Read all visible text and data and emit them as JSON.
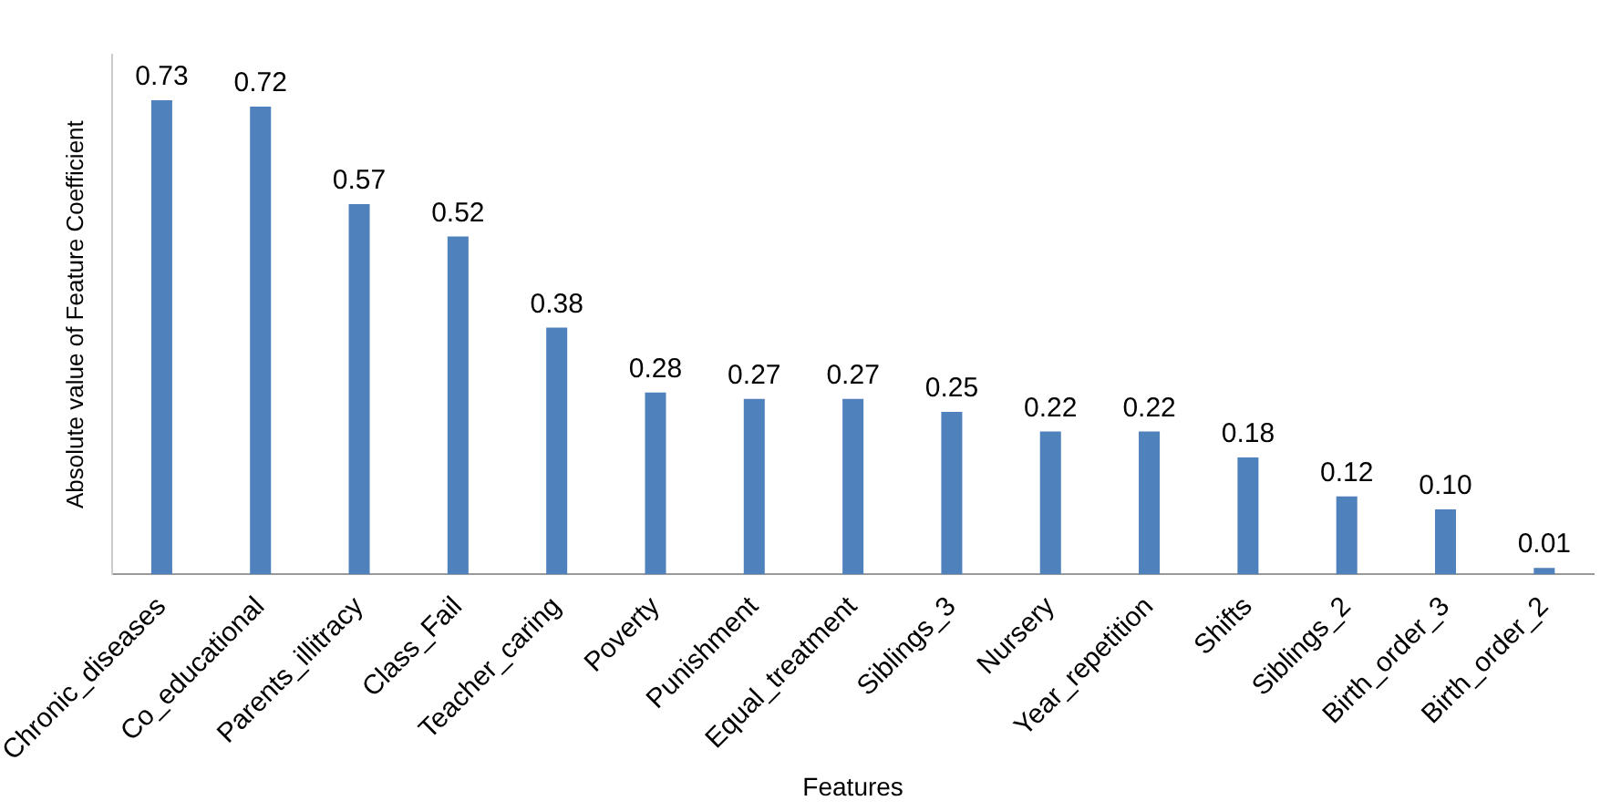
{
  "chart_data": {
    "type": "bar",
    "xlabel": "Features",
    "ylabel": "Absolute value of Feature Coefficient",
    "categories": [
      "Chronic_diseases",
      "Co_educational",
      "Parents_illitracy",
      "Class_Fail",
      "Teacher_caring",
      "Poverty",
      "Punishment",
      "Equal_treatment",
      "Siblings_3",
      "Nursery",
      "Year_repetition",
      "Shifts",
      "Siblings_2",
      "Birth_order_3",
      "Birth_order_2"
    ],
    "values": [
      0.73,
      0.72,
      0.57,
      0.52,
      0.38,
      0.28,
      0.27,
      0.27,
      0.25,
      0.22,
      0.22,
      0.18,
      0.12,
      0.1,
      0.01
    ],
    "value_labels": [
      "0.73",
      "0.72",
      "0.57",
      "0.52",
      "0.38",
      "0.28",
      "0.27",
      "0.27",
      "0.25",
      "0.22",
      "0.22",
      "0.18",
      "0.12",
      "0.10",
      "0.01"
    ],
    "color": "#4f81bd",
    "grid": false,
    "legend": false,
    "tick_labels": "x"
  }
}
